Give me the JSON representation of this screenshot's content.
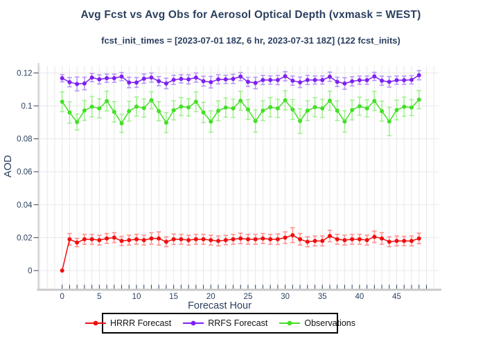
{
  "title": "Avg Fcst vs Avg Obs for Aerosol Optical Depth (vxmask = WEST)",
  "subtitle": "fcst_init_times = [2023-07-01 18Z, 6 hr, 2023-07-31 18Z] (122 fcst_inits)",
  "text_color": "#2a3f5f",
  "chart_data": {
    "type": "line",
    "title": "Avg Fcst vs Avg Obs for Aerosol Optical Depth (vxmask = WEST)",
    "subtitle": "fcst_init_times = [2023-07-01 18Z, 6 hr, 2023-07-31 18Z] (122 fcst_inits)",
    "xlabel": "Forecast Hour",
    "ylabel": "AOD",
    "grid": true,
    "legend_position": "bottom-center",
    "xlim": [
      -3,
      50.5
    ],
    "ylim": [
      -0.011,
      0.1245
    ],
    "xticks": [
      0,
      5,
      10,
      15,
      20,
      25,
      30,
      35,
      40,
      45
    ],
    "xtick_labels": [
      "0",
      "5",
      "10",
      "15",
      "20",
      "25",
      "30",
      "35",
      "40",
      "45"
    ],
    "xticks_minor_every": 1,
    "yticks": [
      0,
      0.02,
      0.04,
      0.06,
      0.08,
      0.1,
      0.12
    ],
    "ytick_labels": [
      "0",
      "0.02",
      "0.04",
      "0.06",
      "0.08",
      "0.1",
      "0.12"
    ],
    "x": [
      0,
      1,
      2,
      3,
      4,
      5,
      6,
      7,
      8,
      9,
      10,
      11,
      12,
      13,
      14,
      15,
      16,
      17,
      18,
      19,
      20,
      21,
      22,
      23,
      24,
      25,
      26,
      27,
      28,
      29,
      30,
      31,
      32,
      33,
      34,
      35,
      36,
      37,
      38,
      39,
      40,
      41,
      42,
      43,
      44,
      45,
      46,
      47,
      48
    ],
    "series": [
      {
        "name": "HRRR Forecast",
        "color": "#f20d0d",
        "error_color": "#ff8f8f",
        "values": [
          0.0,
          0.019,
          0.017,
          0.019,
          0.019,
          0.0185,
          0.0195,
          0.02,
          0.018,
          0.0185,
          0.019,
          0.0185,
          0.0195,
          0.0195,
          0.0175,
          0.019,
          0.019,
          0.0185,
          0.019,
          0.019,
          0.0185,
          0.018,
          0.0185,
          0.019,
          0.0195,
          0.019,
          0.019,
          0.0195,
          0.019,
          0.019,
          0.02,
          0.0215,
          0.019,
          0.0175,
          0.018,
          0.018,
          0.021,
          0.019,
          0.0185,
          0.019,
          0.019,
          0.0185,
          0.0205,
          0.0195,
          0.0175,
          0.018,
          0.018,
          0.018,
          0.0195
        ],
        "errors": [
          0.0002,
          0.0035,
          0.0025,
          0.003,
          0.003,
          0.003,
          0.003,
          0.003,
          0.0028,
          0.003,
          0.003,
          0.003,
          0.0035,
          0.004,
          0.003,
          0.0032,
          0.003,
          0.003,
          0.003,
          0.003,
          0.003,
          0.003,
          0.0028,
          0.003,
          0.0032,
          0.003,
          0.003,
          0.003,
          0.003,
          0.0032,
          0.0035,
          0.0045,
          0.0035,
          0.003,
          0.003,
          0.003,
          0.0035,
          0.003,
          0.003,
          0.003,
          0.003,
          0.003,
          0.0035,
          0.0035,
          0.003,
          0.003,
          0.0028,
          0.003,
          0.0032
        ]
      },
      {
        "name": "RRFS Forecast",
        "color": "#7e1ff2",
        "error_color": "#b795f5",
        "values": [
          0.1168,
          0.1144,
          0.1133,
          0.1136,
          0.1172,
          0.1161,
          0.1168,
          0.1168,
          0.1178,
          0.1142,
          0.1142,
          0.1165,
          0.1172,
          0.115,
          0.1136,
          0.1158,
          0.1164,
          0.1161,
          0.1172,
          0.115,
          0.1144,
          0.1161,
          0.1161,
          0.1164,
          0.1178,
          0.1146,
          0.1139,
          0.1157,
          0.1157,
          0.1157,
          0.118,
          0.1153,
          0.1143,
          0.1157,
          0.1157,
          0.1157,
          0.1177,
          0.1146,
          0.1136,
          0.1149,
          0.1156,
          0.1156,
          0.1179,
          0.1153,
          0.1146,
          0.1156,
          0.1156,
          0.1158,
          0.1186
        ],
        "errors": [
          0.0022,
          0.0028,
          0.0042,
          0.0038,
          0.0025,
          0.0028,
          0.0025,
          0.0025,
          0.0025,
          0.0032,
          0.003,
          0.0028,
          0.0028,
          0.0028,
          0.0032,
          0.0028,
          0.0025,
          0.0028,
          0.0028,
          0.003,
          0.0035,
          0.0028,
          0.0025,
          0.0028,
          0.0025,
          0.0028,
          0.0035,
          0.0028,
          0.0025,
          0.0028,
          0.0028,
          0.0028,
          0.0032,
          0.0028,
          0.0025,
          0.0025,
          0.0028,
          0.0028,
          0.0035,
          0.0028,
          0.0025,
          0.0025,
          0.0025,
          0.0028,
          0.0032,
          0.0025,
          0.0025,
          0.0025,
          0.0028
        ]
      },
      {
        "name": "Observations",
        "color": "#43df25",
        "error_color": "#a2ef90",
        "values": [
          0.1025,
          0.096,
          0.0902,
          0.0972,
          0.0995,
          0.0985,
          0.1029,
          0.0964,
          0.0894,
          0.0968,
          0.0996,
          0.0987,
          0.1034,
          0.0968,
          0.0898,
          0.0973,
          0.0996,
          0.0991,
          0.1025,
          0.096,
          0.0905,
          0.097,
          0.099,
          0.0985,
          0.1031,
          0.0978,
          0.0908,
          0.0971,
          0.0992,
          0.0985,
          0.1034,
          0.0978,
          0.0908,
          0.0971,
          0.0992,
          0.0985,
          0.1031,
          0.0971,
          0.0905,
          0.0975,
          0.0998,
          0.0985,
          0.103,
          0.0968,
          0.0905,
          0.0975,
          0.0995,
          0.099,
          0.1038
        ],
        "errors": [
          0.006,
          0.0065,
          0.0048,
          0.006,
          0.0062,
          0.0058,
          0.006,
          0.0062,
          0.0055,
          0.006,
          0.0058,
          0.0055,
          0.0052,
          0.0058,
          0.006,
          0.0058,
          0.0055,
          0.0052,
          0.006,
          0.0062,
          0.0065,
          0.006,
          0.0058,
          0.0055,
          0.0058,
          0.006,
          0.0068,
          0.006,
          0.0058,
          0.0055,
          0.0058,
          0.006,
          0.0075,
          0.006,
          0.0058,
          0.0055,
          0.0058,
          0.006,
          0.0065,
          0.006,
          0.0055,
          0.0052,
          0.0058,
          0.006,
          0.0085,
          0.006,
          0.0058,
          0.0048,
          0.0055
        ]
      }
    ]
  }
}
